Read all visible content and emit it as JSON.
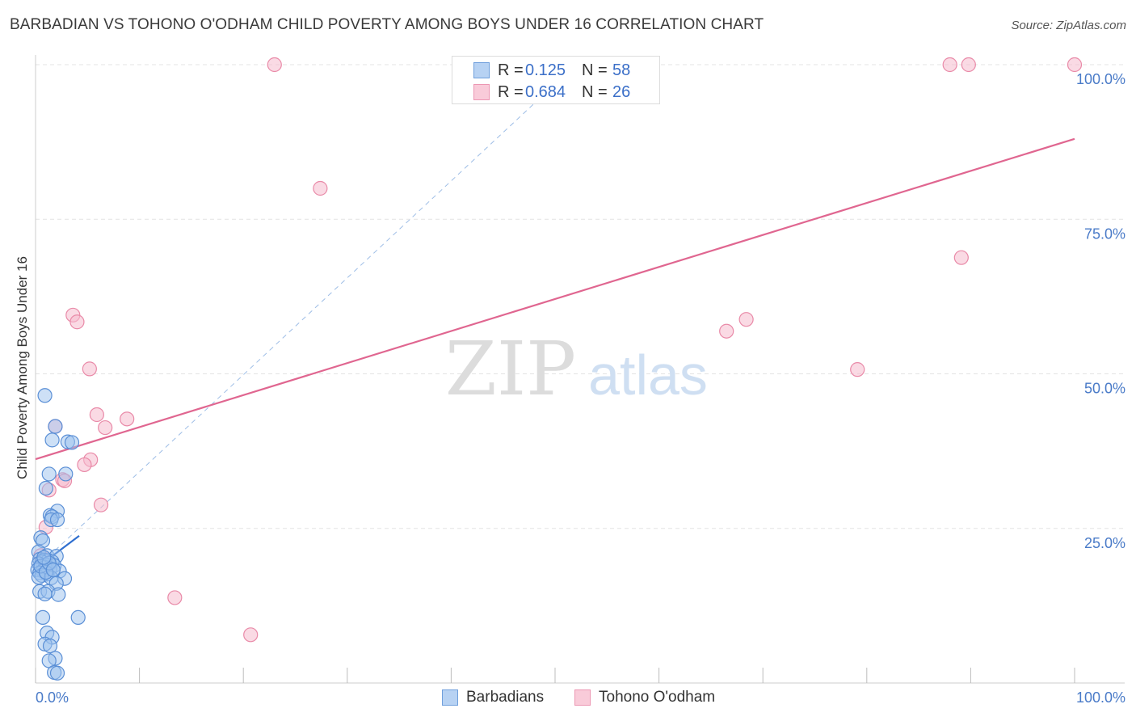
{
  "title": "BARBADIAN VS TOHONO O'ODHAM CHILD POVERTY AMONG BOYS UNDER 16 CORRELATION CHART",
  "source": "Source: ZipAtlas.com",
  "watermark": {
    "zip": "ZIP",
    "atlas": "atlas"
  },
  "legend_top": [
    {
      "r_label": "R =",
      "r_value": "0.125",
      "n_label": "N =",
      "n_value": "58"
    },
    {
      "r_label": "R =",
      "r_value": "0.684",
      "n_label": "N =",
      "n_value": "26"
    }
  ],
  "colors": {
    "blue_fill": "#9cc1ee",
    "blue_stroke": "#5a8fd6",
    "blue_line": "#2f6fd0",
    "pink_fill": "#f6bccd",
    "pink_stroke": "#e98aa8",
    "pink_line": "#e06690",
    "axis_text": "#4a7bc8",
    "grid": "#e3e3e3"
  },
  "chart_data": {
    "type": "scatter",
    "title": "BARBADIAN VS TOHONO O'ODHAM CHILD POVERTY AMONG BOYS UNDER 16 CORRELATION CHART",
    "xlabel": "",
    "ylabel": "Child Poverty Among Boys Under 16",
    "xlim": [
      0,
      100
    ],
    "ylim": [
      0,
      100
    ],
    "x_tick_labels": [
      "0.0%",
      "100.0%"
    ],
    "y_tick_values": [
      25,
      50,
      75,
      100
    ],
    "y_tick_labels": [
      "25.0%",
      "50.0%",
      "75.0%",
      "100.0%"
    ],
    "series": [
      {
        "name": "Barbadians",
        "r": 0.125,
        "n": 58,
        "trend": {
          "x0": 0,
          "y0": 18.5,
          "x1": 4.2,
          "y1": 23.8
        },
        "trend_extended": {
          "x0": 0,
          "y0": 18.5,
          "x1": 52,
          "y1": 100
        },
        "points": [
          [
            0.9,
            46.5
          ],
          [
            1.9,
            41.5
          ],
          [
            1.6,
            39.3
          ],
          [
            3.1,
            39.0
          ],
          [
            3.5,
            38.9
          ],
          [
            1.3,
            33.8
          ],
          [
            2.9,
            33.8
          ],
          [
            1.0,
            31.5
          ],
          [
            2.1,
            27.8
          ],
          [
            1.4,
            27.1
          ],
          [
            1.6,
            26.9
          ],
          [
            1.5,
            26.4
          ],
          [
            2.1,
            26.4
          ],
          [
            0.5,
            23.5
          ],
          [
            0.7,
            23.0
          ],
          [
            0.3,
            21.2
          ],
          [
            1.1,
            20.6
          ],
          [
            2.0,
            20.5
          ],
          [
            0.4,
            20.0
          ],
          [
            0.8,
            19.9
          ],
          [
            1.2,
            19.8
          ],
          [
            0.6,
            19.6
          ],
          [
            1.6,
            19.6
          ],
          [
            0.3,
            19.3
          ],
          [
            1.0,
            19.1
          ],
          [
            1.8,
            19.0
          ],
          [
            0.5,
            18.8
          ],
          [
            0.9,
            18.7
          ],
          [
            1.4,
            18.5
          ],
          [
            0.2,
            18.3
          ],
          [
            0.7,
            18.1
          ],
          [
            2.3,
            18.1
          ],
          [
            0.4,
            17.8
          ],
          [
            1.1,
            17.6
          ],
          [
            0.6,
            17.4
          ],
          [
            0.3,
            17.1
          ],
          [
            1.5,
            17.0
          ],
          [
            2.8,
            16.9
          ],
          [
            2.0,
            16.1
          ],
          [
            0.4,
            14.8
          ],
          [
            1.2,
            14.8
          ],
          [
            0.9,
            14.4
          ],
          [
            2.2,
            14.3
          ],
          [
            4.1,
            10.6
          ],
          [
            0.7,
            10.6
          ],
          [
            1.1,
            8.1
          ],
          [
            1.6,
            7.4
          ],
          [
            0.9,
            6.3
          ],
          [
            1.4,
            6.0
          ],
          [
            1.9,
            4.0
          ],
          [
            1.3,
            3.6
          ],
          [
            1.8,
            1.7
          ],
          [
            2.1,
            1.6
          ],
          [
            0.5,
            18.9
          ],
          [
            1.0,
            17.9
          ],
          [
            1.3,
            19.4
          ],
          [
            0.8,
            20.3
          ],
          [
            1.7,
            18.3
          ]
        ]
      },
      {
        "name": "Tohono O'odham",
        "r": 0.684,
        "n": 26,
        "trend": {
          "x0": 0,
          "y0": 36.2,
          "x1": 100,
          "y1": 88.0
        },
        "points": [
          [
            23.0,
            100.0
          ],
          [
            88.0,
            100.0
          ],
          [
            89.8,
            100.0
          ],
          [
            100.0,
            100.0
          ],
          [
            27.4,
            80.0
          ],
          [
            89.1,
            68.8
          ],
          [
            3.6,
            59.5
          ],
          [
            4.0,
            58.4
          ],
          [
            68.4,
            58.8
          ],
          [
            66.5,
            56.9
          ],
          [
            5.2,
            50.8
          ],
          [
            79.1,
            50.7
          ],
          [
            1.9,
            41.5
          ],
          [
            5.9,
            43.4
          ],
          [
            8.8,
            42.7
          ],
          [
            6.7,
            41.3
          ],
          [
            5.3,
            36.1
          ],
          [
            4.7,
            35.3
          ],
          [
            2.6,
            32.9
          ],
          [
            2.8,
            32.7
          ],
          [
            1.3,
            31.2
          ],
          [
            6.3,
            28.8
          ],
          [
            1.0,
            25.2
          ],
          [
            0.5,
            20.6
          ],
          [
            13.4,
            13.8
          ],
          [
            20.7,
            7.8
          ]
        ]
      }
    ]
  },
  "legend_bottom": [
    "Barbadians",
    "Tohono O'odham"
  ]
}
